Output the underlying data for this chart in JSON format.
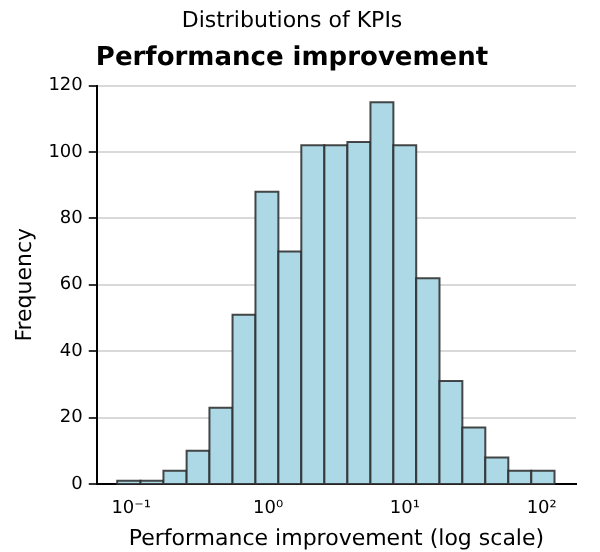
{
  "chart_data": {
    "type": "histogram",
    "title": "Distributions of KPIs",
    "subtitle": "Performance improvement",
    "xlabel": "Performance improvement (log scale)",
    "ylabel": "Frequency",
    "bins": [
      0.079,
      0.117,
      0.172,
      0.254,
      0.373,
      0.55,
      0.809,
      1.19,
      1.75,
      2.58,
      3.8,
      5.6,
      8.24,
      12.1,
      17.9,
      26.3,
      38.7,
      57,
      83.9,
      124
    ],
    "values": [
      1,
      1,
      4,
      10,
      23,
      51,
      88,
      70,
      102,
      102,
      103,
      115,
      102,
      62,
      31,
      17,
      8,
      4,
      4
    ],
    "color": "#add8e6",
    "log": "x",
    "xlim": [
      0.056,
      178
    ],
    "xticks": [
      {
        "value": 0.1,
        "label": "10⁻¹"
      },
      {
        "value": 1,
        "label": "10⁰"
      },
      {
        "value": 10,
        "label": "10¹"
      },
      {
        "value": 100,
        "label": "10²"
      }
    ],
    "ylim": [
      0,
      120
    ],
    "yticks": [
      0,
      20,
      40,
      60,
      80,
      100,
      120
    ],
    "grid": "y",
    "legend": false
  }
}
